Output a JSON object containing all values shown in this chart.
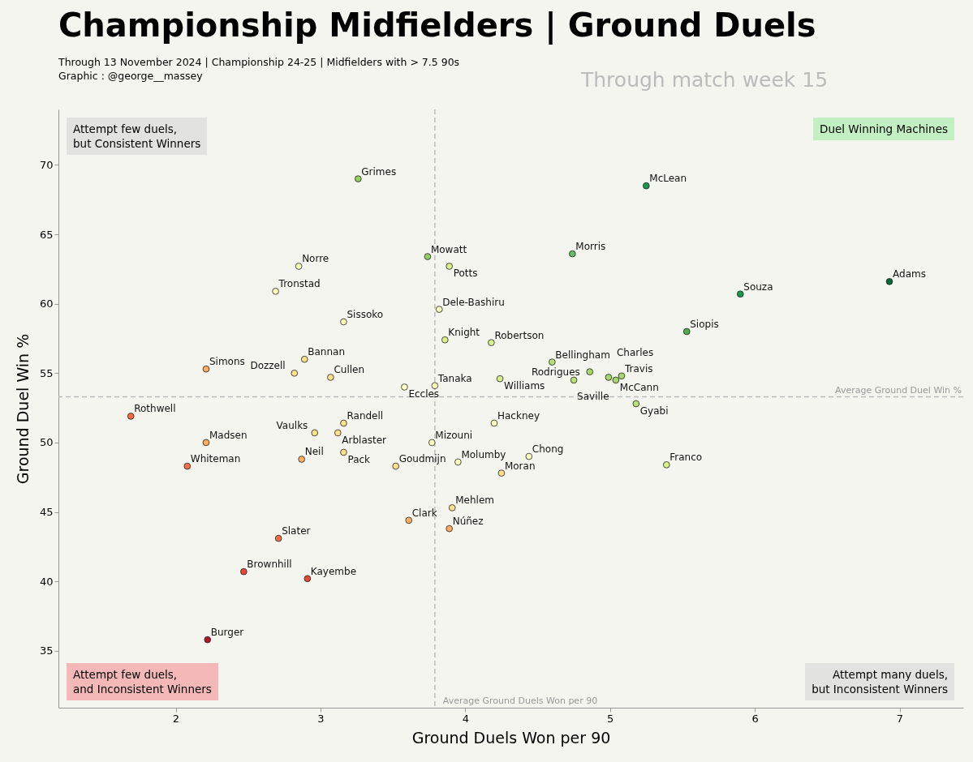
{
  "chart_data": {
    "type": "scatter",
    "title": "Championship Midfielders | Ground Duels",
    "subtitle": "Through 13 November 2024 | Championship 24-25 | Midfielders with > 7.5 90s\nGraphic : @george__massey",
    "xlabel": "Ground Duels Won per 90",
    "ylabel": "Ground Duel Win %",
    "marker": "circle",
    "grid": false,
    "xlim": [
      1.19,
      7.44
    ],
    "ylim": [
      30.9,
      74
    ],
    "xticks": [
      {
        "value": 2,
        "label": "2"
      },
      {
        "value": 3,
        "label": "3"
      },
      {
        "value": 4,
        "label": "4"
      },
      {
        "value": 5,
        "label": "5"
      },
      {
        "value": 6,
        "label": "6"
      },
      {
        "value": 7,
        "label": "7"
      }
    ],
    "yticks": [
      35,
      40,
      45,
      50,
      55,
      60,
      65,
      70
    ],
    "x": [
      3.26,
      5.25,
      3.74,
      3.89,
      4.74,
      2.85,
      2.69,
      5.9,
      6.93,
      3.82,
      3.16,
      5.53,
      3.86,
      4.18,
      4.6,
      4.86,
      2.21,
      2.89,
      2.82,
      3.07,
      4.24,
      4.75,
      5.08,
      5.04,
      4.99,
      3.58,
      3.79,
      5.18,
      1.69,
      3.16,
      4.2,
      2.96,
      3.12,
      2.21,
      3.77,
      2.87,
      3.16,
      2.08,
      3.52,
      3.95,
      4.44,
      4.25,
      5.39,
      3.91,
      3.61,
      3.89,
      2.71,
      2.47,
      2.91,
      2.22
    ],
    "values": [
      69.0,
      68.5,
      63.4,
      62.7,
      63.6,
      62.7,
      60.9,
      60.7,
      61.6,
      59.6,
      58.7,
      58.0,
      57.4,
      57.2,
      55.8,
      55.1,
      55.3,
      56.0,
      55.0,
      54.7,
      54.6,
      54.5,
      54.8,
      54.5,
      54.7,
      54.0,
      54.1,
      52.8,
      51.9,
      51.4,
      51.4,
      50.7,
      50.7,
      50.0,
      50.0,
      48.8,
      49.3,
      48.3,
      48.3,
      48.6,
      49.0,
      47.8,
      48.4,
      45.3,
      44.4,
      43.8,
      43.1,
      40.7,
      40.2,
      35.8
    ],
    "colors": [
      "#91cf60",
      "#1a9850",
      "#91cf60",
      "#d9ef8b",
      "#66bd63",
      "#f7fcb9",
      "#ffffbf",
      "#1a9850",
      "#006837",
      "#f7fcb9",
      "#ffffbf",
      "#4daf4a",
      "#d9ef8b",
      "#d9ef8b",
      "#b7e075",
      "#a6d96a",
      "#fdae61",
      "#fee08b",
      "#fee08b",
      "#fee08b",
      "#d9ef8b",
      "#b7e075",
      "#a6d96a",
      "#a6d96a",
      "#a6d96a",
      "#ffffbf",
      "#ffffbf",
      "#b7e075",
      "#f46d43",
      "#fee08b",
      "#ffffbf",
      "#fee08b",
      "#fee08b",
      "#fdae61",
      "#ffffbf",
      "#fdae61",
      "#fee08b",
      "#f46d43",
      "#fee08b",
      "#ffffbf",
      "#ffffbf",
      "#fee08b",
      "#d9ef8b",
      "#fee08b",
      "#fdae61",
      "#fdae61",
      "#f46d43",
      "#e34a33",
      "#e34a33",
      "#b2182b"
    ],
    "ref_lines": [
      {
        "axis": "y",
        "value": 53.3,
        "label": "Average Ground Duel Win %",
        "color": "#bbbbbb",
        "line_style": "dashed"
      },
      {
        "axis": "x",
        "value": 3.79,
        "label": "Average Ground Duels Won per 90",
        "color": "#bbbbbb",
        "line_style": "dashed"
      }
    ],
    "annotations": [
      "Through match week 15",
      "Attempt few duels,\nbut Consistent Winners",
      "Duel Winning Machines",
      "Attempt few duels,\nand Inconsistent Winners",
      "Attempt many duels,\nbut Inconsistent Winners",
      {
        "text": "Grimes",
        "x": 3.26,
        "y": 69.0
      },
      {
        "text": "McLean",
        "x": 5.25,
        "y": 68.5
      },
      {
        "text": "Mowatt",
        "x": 3.74,
        "y": 63.4
      },
      {
        "text": "Potts",
        "x": 3.89,
        "y": 62.7
      },
      {
        "text": "Morris",
        "x": 4.74,
        "y": 63.6
      },
      {
        "text": "Norre",
        "x": 2.85,
        "y": 62.7
      },
      {
        "text": "Tronstad",
        "x": 2.69,
        "y": 60.9
      },
      {
        "text": "Souza",
        "x": 5.9,
        "y": 60.7
      },
      {
        "text": "Adams",
        "x": 6.93,
        "y": 61.6
      },
      {
        "text": "Dele-Bashiru",
        "x": 3.82,
        "y": 59.6
      },
      {
        "text": "Sissoko",
        "x": 3.16,
        "y": 58.7
      },
      {
        "text": "Siopis",
        "x": 5.53,
        "y": 58.0
      },
      {
        "text": "Knight",
        "x": 3.86,
        "y": 57.4
      },
      {
        "text": "Robertson",
        "x": 4.18,
        "y": 57.2
      },
      {
        "text": "Bellingham",
        "x": 4.6,
        "y": 55.8
      },
      {
        "text": "Rodrigues",
        "x": 4.86,
        "y": 55.1
      },
      {
        "text": "Simons",
        "x": 2.21,
        "y": 55.3
      },
      {
        "text": "Bannan",
        "x": 2.89,
        "y": 56.0
      },
      {
        "text": "Dozzell",
        "x": 2.82,
        "y": 55.0
      },
      {
        "text": "Cullen",
        "x": 3.07,
        "y": 54.7
      },
      {
        "text": "Williams",
        "x": 4.24,
        "y": 54.6
      },
      {
        "text": "Saville",
        "x": 4.75,
        "y": 54.5
      },
      {
        "text": "Travis",
        "x": 5.08,
        "y": 54.8
      },
      {
        "text": "McCann",
        "x": 5.04,
        "y": 54.5
      },
      {
        "text": "Charles",
        "x": 4.99,
        "y": 54.7
      },
      {
        "text": "Eccles",
        "x": 3.58,
        "y": 54.0
      },
      {
        "text": "Tanaka",
        "x": 3.79,
        "y": 54.1
      },
      {
        "text": "Gyabi",
        "x": 5.18,
        "y": 52.8
      },
      {
        "text": "Rothwell",
        "x": 1.69,
        "y": 51.9
      },
      {
        "text": "Randell",
        "x": 3.16,
        "y": 51.4
      },
      {
        "text": "Hackney",
        "x": 4.2,
        "y": 51.4
      },
      {
        "text": "Vaulks",
        "x": 2.96,
        "y": 50.7
      },
      {
        "text": "Arblaster",
        "x": 3.12,
        "y": 50.7
      },
      {
        "text": "Madsen",
        "x": 2.21,
        "y": 50.0
      },
      {
        "text": "Mizouni",
        "x": 3.77,
        "y": 50.0
      },
      {
        "text": "Neil",
        "x": 2.87,
        "y": 48.8
      },
      {
        "text": "Pack",
        "x": 3.16,
        "y": 49.3
      },
      {
        "text": "Whiteman",
        "x": 2.08,
        "y": 48.3
      },
      {
        "text": "Goudmijn",
        "x": 3.52,
        "y": 48.3
      },
      {
        "text": "Molumby",
        "x": 3.95,
        "y": 48.6
      },
      {
        "text": "Chong",
        "x": 4.44,
        "y": 49.0
      },
      {
        "text": "Moran",
        "x": 4.25,
        "y": 47.8
      },
      {
        "text": "Franco",
        "x": 5.39,
        "y": 48.4
      },
      {
        "text": "Mehlem",
        "x": 3.91,
        "y": 45.3
      },
      {
        "text": "Clark",
        "x": 3.61,
        "y": 44.4
      },
      {
        "text": "Núñez",
        "x": 3.89,
        "y": 43.8
      },
      {
        "text": "Slater",
        "x": 2.71,
        "y": 43.1
      },
      {
        "text": "Brownhill",
        "x": 2.47,
        "y": 40.7
      },
      {
        "text": "Kayembe",
        "x": 2.91,
        "y": 40.2
      },
      {
        "text": "Burger",
        "x": 2.22,
        "y": 35.8
      }
    ]
  }
}
